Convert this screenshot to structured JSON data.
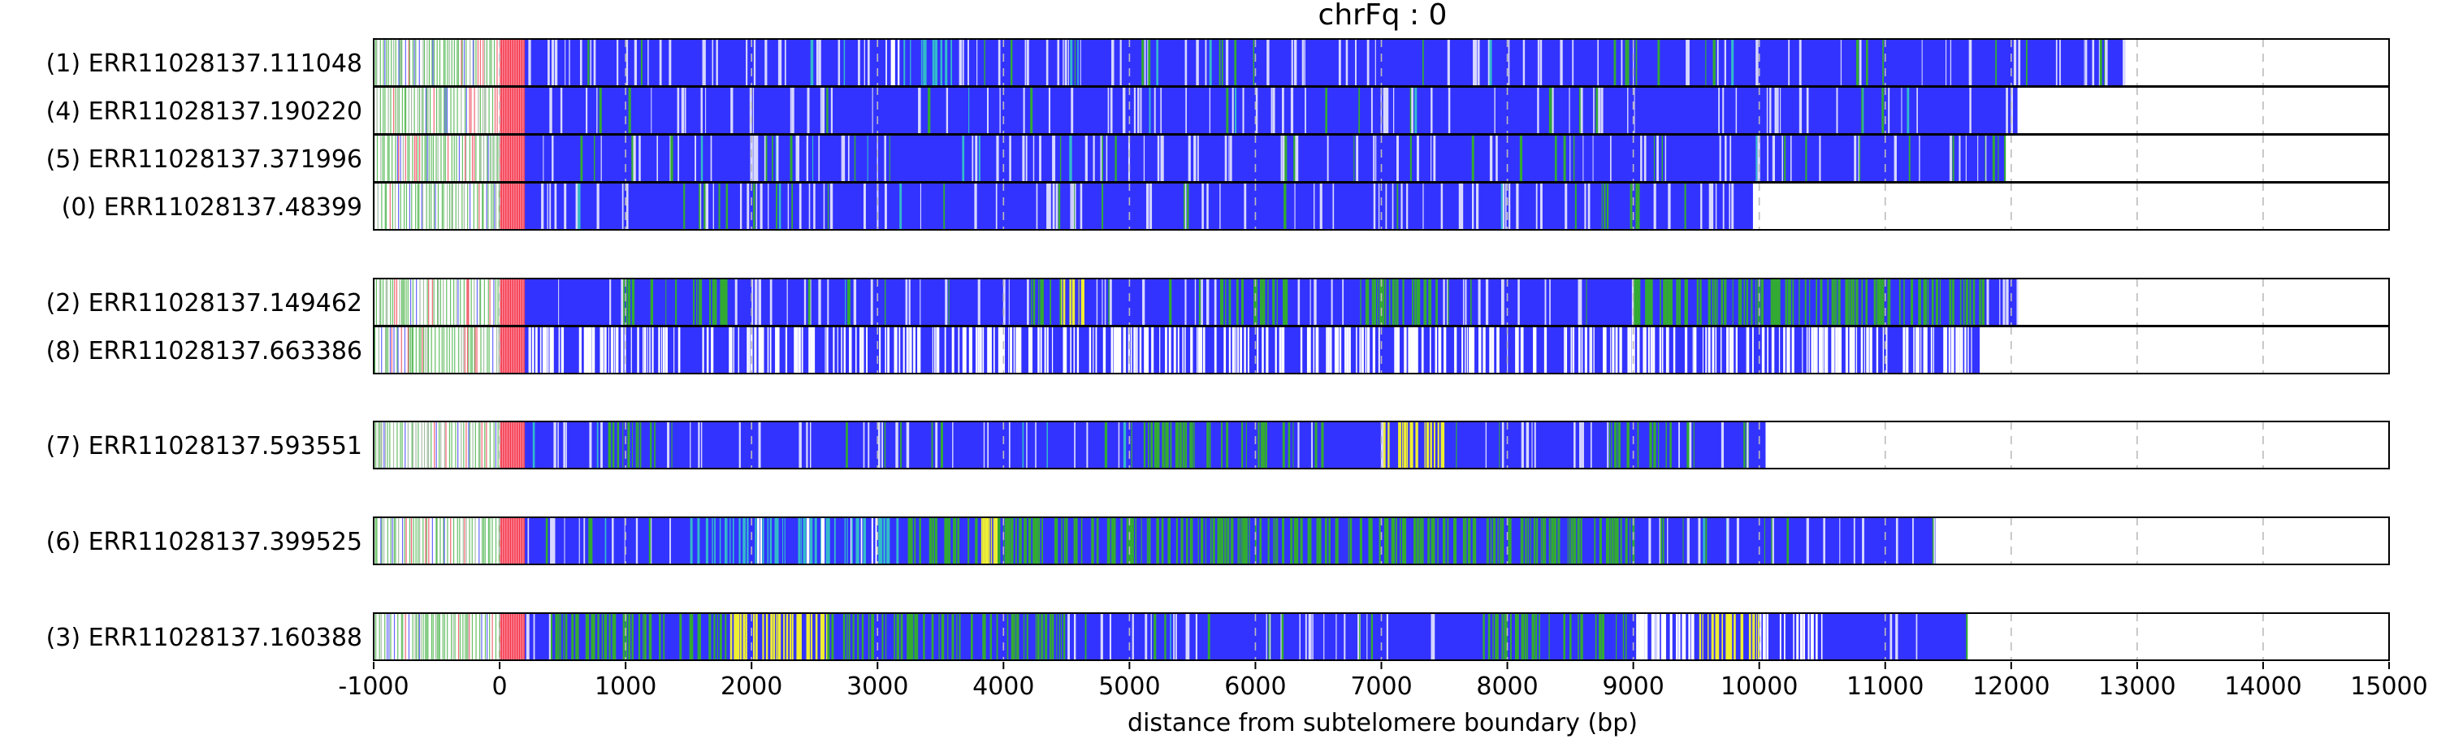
{
  "chart_data": {
    "type": "track",
    "title": "chrFq : 0",
    "xlabel": "distance from subtelomere boundary (bp)",
    "xlim": [
      -1000,
      15000
    ],
    "xticks": [
      -1000,
      0,
      1000,
      2000,
      3000,
      4000,
      5000,
      6000,
      7000,
      8000,
      9000,
      10000,
      11000,
      12000,
      13000,
      14000,
      15000
    ],
    "grid": "vertical dashed at each tick",
    "colors": {
      "subtelomere": "#ffffff",
      "boundary": "#ee3344",
      "telomere_repeat": "#3333ff",
      "variant_green": "#33aa33",
      "variant_yellow": "#eeee33",
      "variant_cyan": "#33bbcc",
      "gap": "#ffffff",
      "grid": "#bbbbbb"
    },
    "groups": [
      {
        "tracks": [
          {
            "label": "(1) ERR11028137.111048",
            "start": -1000,
            "end": 12900,
            "cyan_regions": [
              [
                3200,
                3600
              ]
            ],
            "white_regions": [
              [
                3050,
                3250
              ]
            ],
            "seed": 11
          },
          {
            "label": "(4) ERR11028137.190220",
            "start": -1000,
            "end": 12050,
            "seed": 4
          },
          {
            "label": "(5) ERR11028137.371996",
            "start": -1000,
            "end": 11950,
            "seed": 5
          },
          {
            "label": "(0) ERR11028137.48399",
            "start": -1000,
            "end": 9950,
            "green_regions": [
              [
                8700,
                9050
              ]
            ],
            "seed": 7
          }
        ]
      },
      {
        "tracks": [
          {
            "label": "(2) ERR11028137.149462",
            "start": -1000,
            "end": 12050,
            "green_regions": [
              [
                1000,
                1800
              ],
              [
                4200,
                4500
              ],
              [
                5700,
                6300
              ],
              [
                6800,
                7400
              ],
              [
                9000,
                11800
              ]
            ],
            "yellow_regions": [
              [
                4450,
                4650
              ]
            ],
            "seed": 2
          },
          {
            "label": "(8) ERR11028137.663386",
            "start": -1000,
            "end": 11750,
            "white_regions": [
              [
                200,
                11700
              ]
            ],
            "seed": 8
          }
        ]
      },
      {
        "tracks": [
          {
            "label": "(7) ERR11028137.593551",
            "start": -1000,
            "end": 10050,
            "green_regions": [
              [
                800,
                1300
              ],
              [
                5000,
                6300
              ],
              [
                8800,
                9300
              ]
            ],
            "yellow_regions": [
              [
                7000,
                7500
              ]
            ],
            "seed": 77
          }
        ]
      },
      {
        "tracks": [
          {
            "label": "(6) ERR11028137.399525",
            "start": -1000,
            "end": 11400,
            "cyan_regions": [
              [
                1500,
                3200
              ]
            ],
            "white_regions": [
              [
                2000,
                3100
              ]
            ],
            "green_regions": [
              [
                3200,
                9000
              ]
            ],
            "yellow_regions": [
              [
                3800,
                3950
              ]
            ],
            "seed": 66
          }
        ]
      },
      {
        "tracks": [
          {
            "label": "(3) ERR11028137.160388",
            "start": -1000,
            "end": 11650,
            "green_regions": [
              [
                400,
                4500
              ],
              [
                7800,
                9000
              ]
            ],
            "yellow_regions": [
              [
                1800,
                2600
              ],
              [
                9500,
                10000
              ]
            ],
            "white_regions": [
              [
                9000,
                10500
              ]
            ],
            "seed": 33
          }
        ]
      }
    ]
  }
}
